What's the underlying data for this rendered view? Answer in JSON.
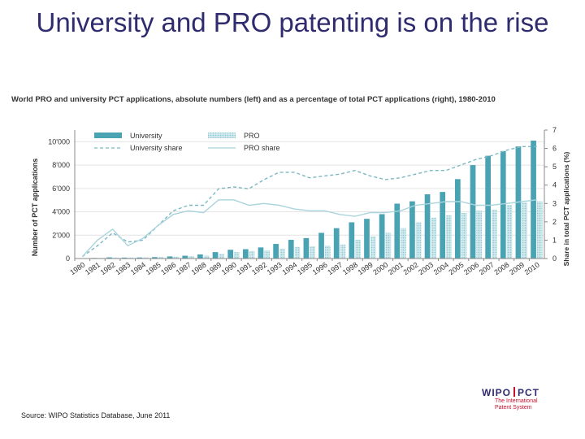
{
  "slide": {
    "title": "University and PRO patenting is on the rise",
    "source": "Source: WIPO Statistics Database, June 2011"
  },
  "logo": {
    "left": "WIPO",
    "right": "PCT",
    "sub1": "The International",
    "sub2": "Patent System"
  },
  "colors": {
    "university": "#4aa3b3",
    "pro": "#b9dde3",
    "university_share": "#7bb8c4",
    "pro_share": "#a9d4dc",
    "title": "#2e2b6e"
  },
  "chart_data": {
    "type": "bar",
    "title": "World PRO and university PCT applications, absolute numbers (left) and as a percentage of total PCT applications (right), 1980-2010",
    "categories": [
      "1980",
      "1981",
      "1982",
      "1983",
      "1984",
      "1985",
      "1986",
      "1987",
      "1988",
      "1989",
      "1990",
      "1991",
      "1992",
      "1993",
      "1994",
      "1995",
      "1996",
      "1997",
      "1998",
      "1999",
      "2000",
      "2001",
      "2002",
      "2003",
      "2004",
      "2005",
      "2006",
      "2007",
      "2008",
      "2009",
      "2010"
    ],
    "ylabel": "Number of PCT applications",
    "y2label": "Share in total PCT applications (%)",
    "ylim": [
      0,
      11000
    ],
    "y2lim": [
      0,
      7
    ],
    "yticks": [
      "0",
      "2'000",
      "4'000",
      "6'000",
      "8'000",
      "10'000"
    ],
    "y2ticks": [
      "0",
      "1",
      "2",
      "3",
      "4",
      "5",
      "6",
      "7"
    ],
    "legend_position": "top-left",
    "series": [
      {
        "name": "University",
        "kind": "bar",
        "axis": "left",
        "values": [
          0,
          50,
          100,
          80,
          90,
          120,
          180,
          240,
          350,
          550,
          750,
          800,
          950,
          1250,
          1600,
          1750,
          2200,
          2600,
          3100,
          3400,
          3800,
          4700,
          4900,
          5500,
          5700,
          6800,
          8000,
          8800,
          9200,
          9600,
          10100
        ]
      },
      {
        "name": "PRO",
        "kind": "bar",
        "axis": "left",
        "values": [
          0,
          50,
          80,
          80,
          90,
          120,
          150,
          200,
          250,
          400,
          550,
          650,
          700,
          850,
          1000,
          1050,
          1100,
          1200,
          1600,
          1900,
          2200,
          2600,
          3100,
          3500,
          3700,
          3900,
          4100,
          4200,
          4600,
          4800,
          4900
        ]
      },
      {
        "name": "University share",
        "kind": "line",
        "axis": "right",
        "values": [
          0.1,
          0.7,
          1.4,
          0.9,
          1.0,
          1.8,
          2.6,
          2.9,
          2.9,
          3.8,
          3.9,
          3.8,
          4.3,
          4.7,
          4.7,
          4.4,
          4.5,
          4.6,
          4.8,
          4.5,
          4.3,
          4.4,
          4.6,
          4.8,
          4.8,
          5.1,
          5.4,
          5.6,
          5.9,
          6.1,
          6.1
        ]
      },
      {
        "name": "PRO share",
        "kind": "line",
        "axis": "right",
        "values": [
          0.1,
          1.0,
          1.6,
          0.7,
          1.1,
          1.8,
          2.4,
          2.6,
          2.5,
          3.2,
          3.2,
          2.9,
          3.0,
          2.9,
          2.7,
          2.6,
          2.6,
          2.4,
          2.3,
          2.5,
          2.5,
          2.6,
          2.9,
          3.0,
          3.1,
          3.1,
          2.9,
          2.9,
          3.0,
          3.1,
          3.2
        ]
      }
    ]
  }
}
